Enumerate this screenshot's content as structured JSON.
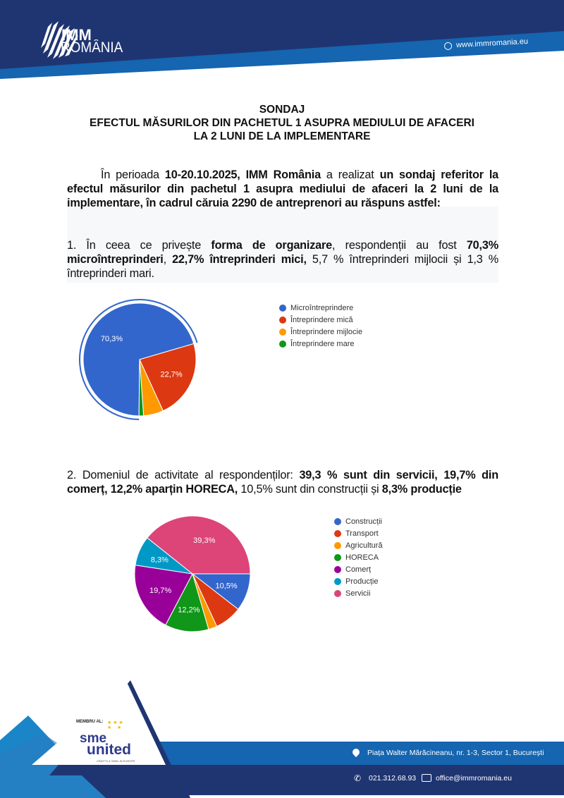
{
  "header": {
    "logo_line1": "IMM",
    "logo_line2": "ROMÂNIA",
    "website": "www.immromania.eu",
    "colors": {
      "navy": "#1f3572",
      "blue": "#1565b0"
    }
  },
  "title": {
    "line1": "SONDAJ",
    "line2": "EFECTUL MĂSURILOR DIN PACHETUL 1 ASUPRA MEDIULUI DE AFACERI",
    "line3": "LA 2 LUNI DE LA IMPLEMENTARE"
  },
  "intro": [
    {
      "t": "În perioada ",
      "b": false
    },
    {
      "t": "10-20.10.2025, IMM România",
      "b": true
    },
    {
      "t": " a realizat ",
      "b": false
    },
    {
      "t": "un sondaj referitor la efectul măsurilor din pachetul 1 asupra mediului de afaceri la 2 luni de la implementare, în cadrul căruia 2290 de antreprenori au răspuns astfel:",
      "b": true
    }
  ],
  "section1": [
    {
      "t": "1. În ceea ce privește ",
      "b": false
    },
    {
      "t": "forma de organizare",
      "b": true
    },
    {
      "t": ", respondenții au fost ",
      "b": false
    },
    {
      "t": "70,3% microîntreprinderi",
      "b": true
    },
    {
      "t": ", ",
      "b": false
    },
    {
      "t": "22,7% întreprinderi mici,",
      "b": true
    },
    {
      "t": " 5,7 % întreprinderi mijlocii și 1,3 % întreprinderi mari.",
      "b": false
    }
  ],
  "section2": [
    {
      "t": "2. Domeniul de activitate al respondenților: ",
      "b": false
    },
    {
      "t": "39,3 % sunt din servicii, 19,7% din comerț, 12,2% aparțin HORECA,",
      "b": true
    },
    {
      "t": " 10,5% sunt din construcții și ",
      "b": false
    },
    {
      "t": "8,3% producție",
      "b": true
    }
  ],
  "chart_data": [
    {
      "type": "pie",
      "categories": [
        "Microîntreprindere",
        "Întreprindere mică",
        "Întreprindere mijlocie",
        "Întreprindere mare"
      ],
      "values": [
        70.3,
        22.7,
        5.7,
        1.3
      ],
      "data_labels": [
        "70,3%",
        "22,7%",
        "",
        ""
      ],
      "colors": [
        "#3366cc",
        "#dc3912",
        "#ff9900",
        "#109618"
      ],
      "legend": "right",
      "highlighted": "Microîntreprindere"
    },
    {
      "type": "pie",
      "categories": [
        "Construcții",
        "Transport",
        "Agricultură",
        "HORECA",
        "Comerț",
        "Producție",
        "Servicii"
      ],
      "values": [
        10.5,
        7.6,
        2.4,
        12.2,
        19.7,
        8.3,
        39.3
      ],
      "data_labels": [
        "10,5%",
        "",
        "",
        "12,2%",
        "19,7%",
        "8,3%",
        "39,3%"
      ],
      "colors": [
        "#3366cc",
        "#dc3912",
        "#ff9900",
        "#109618",
        "#990099",
        "#0099c6",
        "#dd4477"
      ],
      "legend": "right"
    }
  ],
  "footer": {
    "member_label": "MEMBRU AL:",
    "sme_logo_line1": "sme",
    "sme_logo_line2": "united",
    "sme_tagline": "CRAFTS & SMEs IN EUROPE",
    "address": "Piața Walter Mărăcineanu, nr. 1-3, Sector 1, București",
    "phone": "021.312.68.93",
    "email": "office@immromania.eu"
  }
}
